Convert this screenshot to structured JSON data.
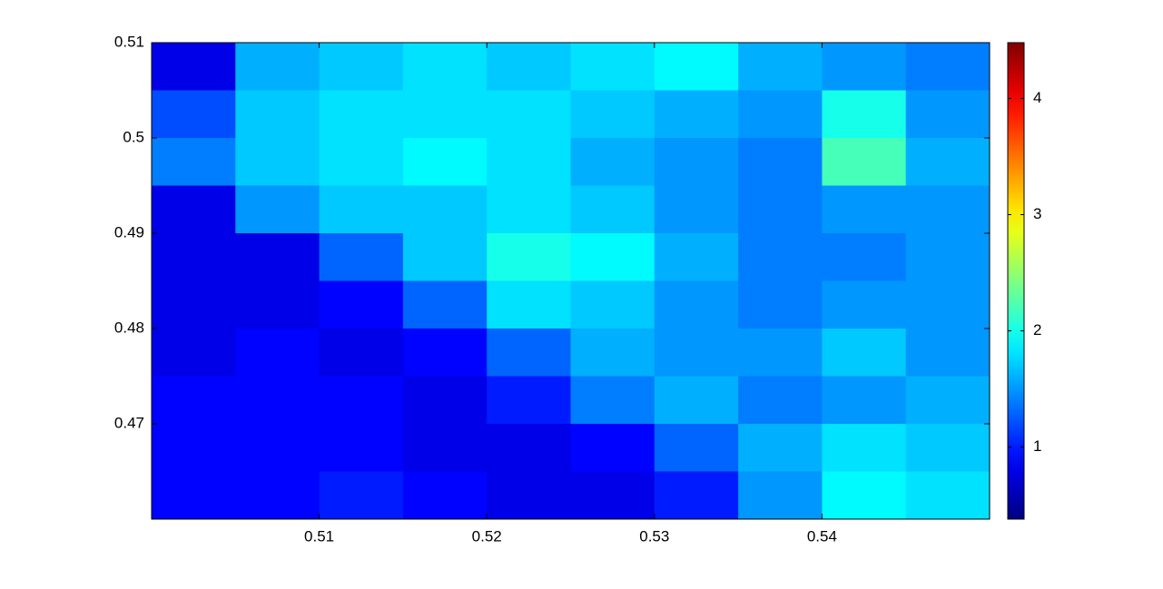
{
  "chart_data": {
    "type": "heatmap",
    "x": [
      0.5025,
      0.5075,
      0.5125,
      0.5175,
      0.5225,
      0.5275,
      0.5325,
      0.5375,
      0.5425,
      0.5475
    ],
    "y": [
      0.5075,
      0.5025,
      0.4975,
      0.4925,
      0.4875,
      0.4825,
      0.4775,
      0.4725,
      0.4675,
      0.4625
    ],
    "z": [
      [
        0.8,
        1.6,
        1.7,
        1.8,
        1.7,
        1.8,
        1.9,
        1.6,
        1.5,
        1.4
      ],
      [
        1.2,
        1.7,
        1.8,
        1.8,
        1.8,
        1.7,
        1.6,
        1.5,
        2.0,
        1.5
      ],
      [
        1.4,
        1.7,
        1.8,
        1.9,
        1.8,
        1.6,
        1.5,
        1.4,
        2.2,
        1.6
      ],
      [
        0.8,
        1.5,
        1.7,
        1.7,
        1.8,
        1.7,
        1.5,
        1.4,
        1.5,
        1.5
      ],
      [
        0.8,
        0.8,
        1.3,
        1.7,
        2.0,
        1.9,
        1.6,
        1.4,
        1.4,
        1.5
      ],
      [
        0.8,
        0.8,
        0.9,
        1.3,
        1.8,
        1.7,
        1.5,
        1.4,
        1.5,
        1.5
      ],
      [
        0.8,
        0.9,
        0.8,
        0.9,
        1.3,
        1.6,
        1.5,
        1.5,
        1.7,
        1.5
      ],
      [
        0.9,
        0.9,
        0.9,
        0.8,
        1.0,
        1.4,
        1.6,
        1.4,
        1.5,
        1.6
      ],
      [
        0.9,
        0.9,
        0.9,
        0.8,
        0.8,
        0.9,
        1.3,
        1.6,
        1.8,
        1.7
      ],
      [
        0.9,
        0.9,
        1.0,
        0.9,
        0.8,
        0.8,
        1.0,
        1.5,
        1.9,
        1.8
      ]
    ],
    "colormap": "jet",
    "xlim": [
      0.5,
      0.55
    ],
    "xticks": [
      0.51,
      0.52,
      0.53,
      0.54
    ],
    "ylim": [
      0.46,
      0.51
    ],
    "yticks": [
      0.47,
      0.48,
      0.49,
      0.5,
      0.51
    ],
    "clim": [
      0.38,
      4.48
    ],
    "cticks": [
      1,
      2,
      3,
      4
    ]
  }
}
